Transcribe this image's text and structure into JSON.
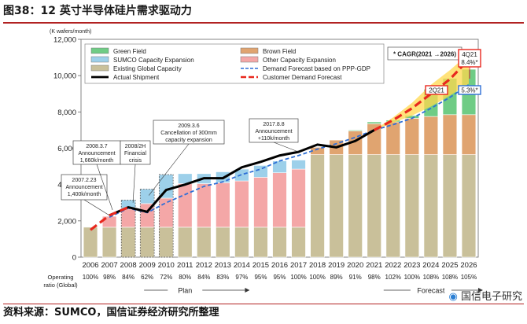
{
  "header": {
    "title": "图38：12 英寸半导体硅片需求驱动力"
  },
  "footer": {
    "source": "资料来源：SUMCO，国信证券经济研究所整理",
    "brand": "国信电子研究"
  },
  "chart_data": {
    "type": "bar",
    "unit_label": "(K wafers/month)",
    "ylim": [
      0,
      12000
    ],
    "y_ticks": [
      "0",
      "2,000",
      "4,000",
      "6,000",
      "8,000",
      "10,000",
      "12,000"
    ],
    "y_tick_values": [
      0,
      2000,
      4000,
      6000,
      8000,
      10000,
      12000
    ],
    "categories": [
      "2006",
      "2007",
      "2008",
      "2009",
      "2010",
      "2011",
      "2012",
      "2013",
      "2014",
      "2015",
      "2016",
      "2017",
      "2018",
      "2019",
      "2020",
      "2021",
      "2022",
      "2023",
      "2024",
      "2025",
      "2026"
    ],
    "operating_ratio_label": "Operating ratio (Global)",
    "operating_ratio": [
      "100%",
      "98%",
      "84%",
      "62%",
      "72%",
      "80%",
      "84%",
      "83%",
      "97%",
      "95%",
      "95%",
      "100%",
      "100%",
      "89%",
      "91%",
      "98%",
      "102%",
      "100%",
      "108%",
      "108%",
      "105%"
    ],
    "series": [
      {
        "name": "Existing Global Capacity",
        "color": "#c9c09a",
        "values": [
          1650,
          1650,
          1650,
          1650,
          1650,
          1650,
          1650,
          1650,
          1650,
          1650,
          1650,
          1650,
          5650,
          5650,
          5650,
          5650,
          5650,
          5650,
          5650,
          5650,
          5650
        ]
      },
      {
        "name": "Other Capacity Expansion",
        "color": "#f4a7a7",
        "values": [
          0,
          600,
          1000,
          1300,
          1600,
          2400,
          2400,
          2450,
          2550,
          2750,
          3000,
          3200,
          0,
          0,
          0,
          0,
          0,
          0,
          0,
          0,
          0
        ]
      },
      {
        "name": "SUMCO Capacity Expansion",
        "color": "#9dd0ea",
        "values": [
          0,
          0,
          500,
          800,
          1300,
          550,
          550,
          600,
          650,
          650,
          650,
          500,
          0,
          0,
          0,
          0,
          0,
          0,
          0,
          0,
          0
        ]
      },
      {
        "name": "Brown Field",
        "color": "#e0a470",
        "values": [
          0,
          0,
          0,
          0,
          0,
          0,
          0,
          0,
          0,
          0,
          0,
          0,
          400,
          800,
          1300,
          1700,
          1800,
          2000,
          2100,
          2200,
          2200
        ]
      },
      {
        "name": "Green Field",
        "color": "#6fcc85",
        "values": [
          0,
          0,
          0,
          0,
          0,
          0,
          0,
          0,
          0,
          0,
          0,
          0,
          0,
          0,
          50,
          100,
          100,
          150,
          1500,
          2000,
          2500
        ]
      }
    ],
    "dashed_boxes": [
      2008,
      2009,
      2010
    ],
    "lines": [
      {
        "name": "Actual Shipment",
        "color": "#000000",
        "values": [
          null,
          2300,
          2750,
          2500,
          3700,
          4000,
          4350,
          4350,
          4950,
          5250,
          5600,
          5800,
          6200,
          6050,
          6400,
          7000,
          null,
          null,
          null,
          null,
          null
        ]
      },
      {
        "name": "Demand Forecast based on PPP-GDP",
        "color": "#2f6fd6",
        "values": [
          null,
          2200,
          2700,
          2450,
          3000,
          3450,
          3900,
          4150,
          4550,
          4850,
          5300,
          5600,
          5950,
          6250,
          6600,
          7000,
          7300,
          7650,
          8200,
          8800,
          9500
        ]
      },
      {
        "name": "Customer Demand Forecast",
        "color": "#e8281e",
        "values": [
          1500,
          2300,
          2750,
          null,
          4150,
          null,
          null,
          null,
          null,
          null,
          null,
          null,
          null,
          null,
          null,
          7000,
          7550,
          8200,
          9000,
          9800,
          10900
        ]
      }
    ],
    "customer_forecast_band": {
      "years": [
        2021,
        2022,
        2023,
        2024,
        2025,
        2026
      ],
      "low": [
        7000,
        7400,
        7800,
        8300,
        8900,
        9550
      ],
      "high": [
        7000,
        7700,
        8500,
        9500,
        10300,
        11200
      ]
    },
    "legend": [
      {
        "label": "Green Field",
        "color": "#6fcc85",
        "kind": "box"
      },
      {
        "label": "Brown Field",
        "color": "#e0a470",
        "kind": "box"
      },
      {
        "label": "SUMCO Capacity Expansion",
        "color": "#9dd0ea",
        "kind": "box"
      },
      {
        "label": "Other Capacity Expansion",
        "color": "#f4a7a7",
        "kind": "box"
      },
      {
        "label": "Existing Global Capacity",
        "color": "#c9c09a",
        "kind": "box"
      },
      {
        "label": "Demand Forecast based on PPP-GDP",
        "color": "#2f6fd6",
        "kind": "dash"
      },
      {
        "label": "Actual Shipment",
        "color": "#000000",
        "kind": "solid"
      },
      {
        "label": "Customer Demand Forecast",
        "color": "#e8281e",
        "kind": "reddash"
      }
    ],
    "cagr_box": "* CAGR(2021 →2026)",
    "annotations": [
      {
        "lines": [
          "2007.2.23",
          "Announcement",
          "1,400k/month"
        ]
      },
      {
        "lines": [
          "2008.3.7",
          "Announcement",
          "1,660k/month"
        ]
      },
      {
        "lines": [
          "2008/2H",
          "Financial",
          "crisis"
        ]
      },
      {
        "lines": [
          "2009.3.6",
          "Cancellation of 300mm",
          "capacity expansion"
        ]
      },
      {
        "lines": [
          "2017.8.8",
          "Announcement",
          "+110k/month"
        ]
      }
    ],
    "callouts": [
      {
        "label": "4Q21",
        "value": "8.4%*"
      },
      {
        "label": "2Q21",
        "value": "5.3%*"
      }
    ],
    "plan_label": "Plan",
    "forecast_label": "Forecast"
  }
}
